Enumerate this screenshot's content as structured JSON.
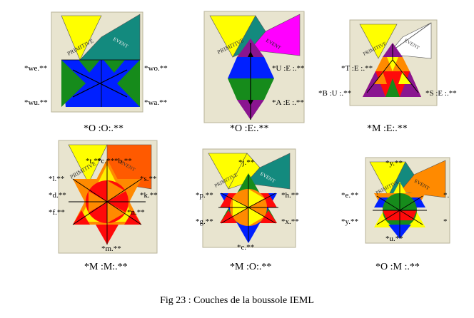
{
  "figures": [
    {
      "title": "*O :O:.**",
      "banner": [
        "PRIMITIVE",
        "EVENT"
      ],
      "labels": [
        "*we.**",
        "*wo.**",
        "*wu.**",
        "*wa.**"
      ]
    },
    {
      "title": "*O :E:.**",
      "banner": [
        "PRIMITIVE",
        "EVENT"
      ],
      "labels": [
        "*U :E :.**",
        "*A :E :.**"
      ]
    },
    {
      "title": "*M :E:.**",
      "banner": [
        "PRIMITIVE",
        "EVENT"
      ],
      "labels": [
        "*T :E :.**",
        "*B :U :.**",
        "*S :E :.**"
      ]
    },
    {
      "title": "*M :M:.**",
      "banner": [
        "PRIMITIVE",
        "EVENT"
      ],
      "labels": [
        "*t.**",
        "*c.**",
        "*b.**",
        "*l.**",
        "*s.**",
        "*d.**",
        "*k.**",
        "*f.**",
        "*n.**",
        "*m.**"
      ]
    },
    {
      "title": "*M :O:.**",
      "banner": [
        "PRIMITIVE",
        "EVENT"
      ],
      "labels": [
        "*j.**",
        "*p.**",
        "*h.**",
        "*g.**",
        "*x.**",
        "*c.**"
      ]
    },
    {
      "title": "*O :M :.**",
      "banner": [
        "PRIMITIVE",
        "EVENT"
      ],
      "labels": [
        "*y.**",
        "*e.**",
        "*.",
        "*y.**",
        "*",
        "*u.**"
      ]
    }
  ],
  "caption": "Fig 23 : Couches de la boussole IEML",
  "colors": {
    "yellow": "#ffff00",
    "teal": "#138a7e",
    "blue": "#0020ff",
    "green": "#168b1b",
    "purple": "#8a1590",
    "magenta": "#ff00ff",
    "red": "#ff0a0a",
    "orange": "#ff8a00",
    "white": "#ffffff"
  }
}
